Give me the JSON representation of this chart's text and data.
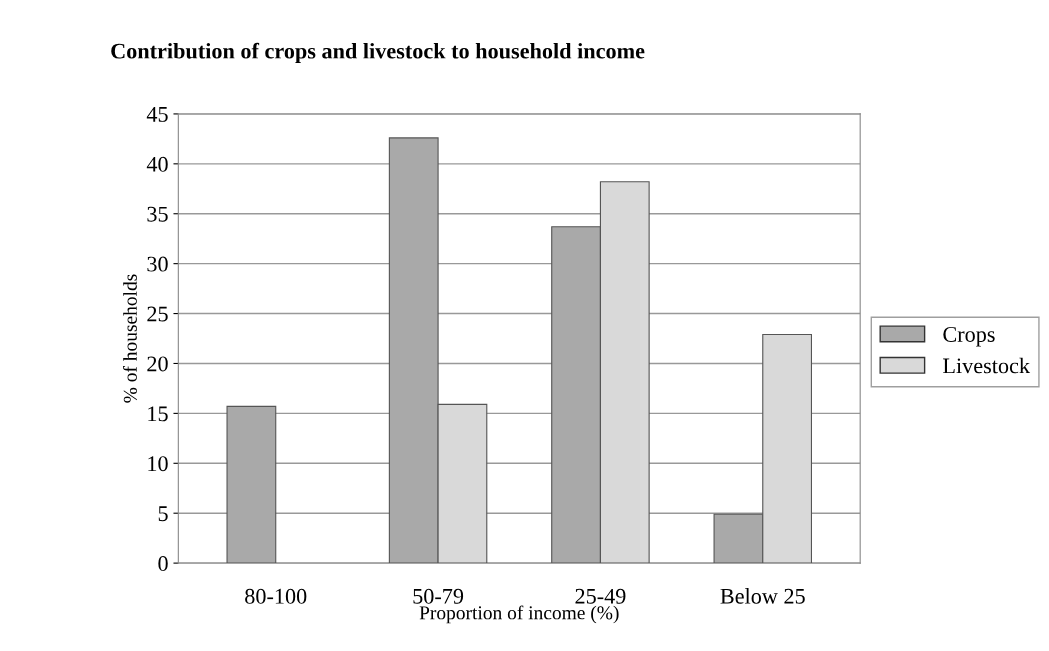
{
  "chart_data": {
    "type": "bar",
    "title": "Contribution of crops and livestock to household income",
    "xlabel": "Proportion of income (%)",
    "ylabel": "% of households",
    "categories": [
      "80-100",
      "50-79",
      "25-49",
      "Below 25"
    ],
    "series": [
      {
        "name": "Crops",
        "color": "#a9a9a9",
        "values": [
          15.7,
          42.6,
          33.7,
          4.9
        ]
      },
      {
        "name": "Livestock",
        "color": "#d9d9d9",
        "values": [
          null,
          15.9,
          38.2,
          22.9
        ]
      }
    ],
    "ylim": [
      0,
      45
    ],
    "yticks": [
      0,
      5,
      10,
      15,
      20,
      25,
      30,
      35,
      40,
      45
    ],
    "grid": "y",
    "legend": "right"
  }
}
